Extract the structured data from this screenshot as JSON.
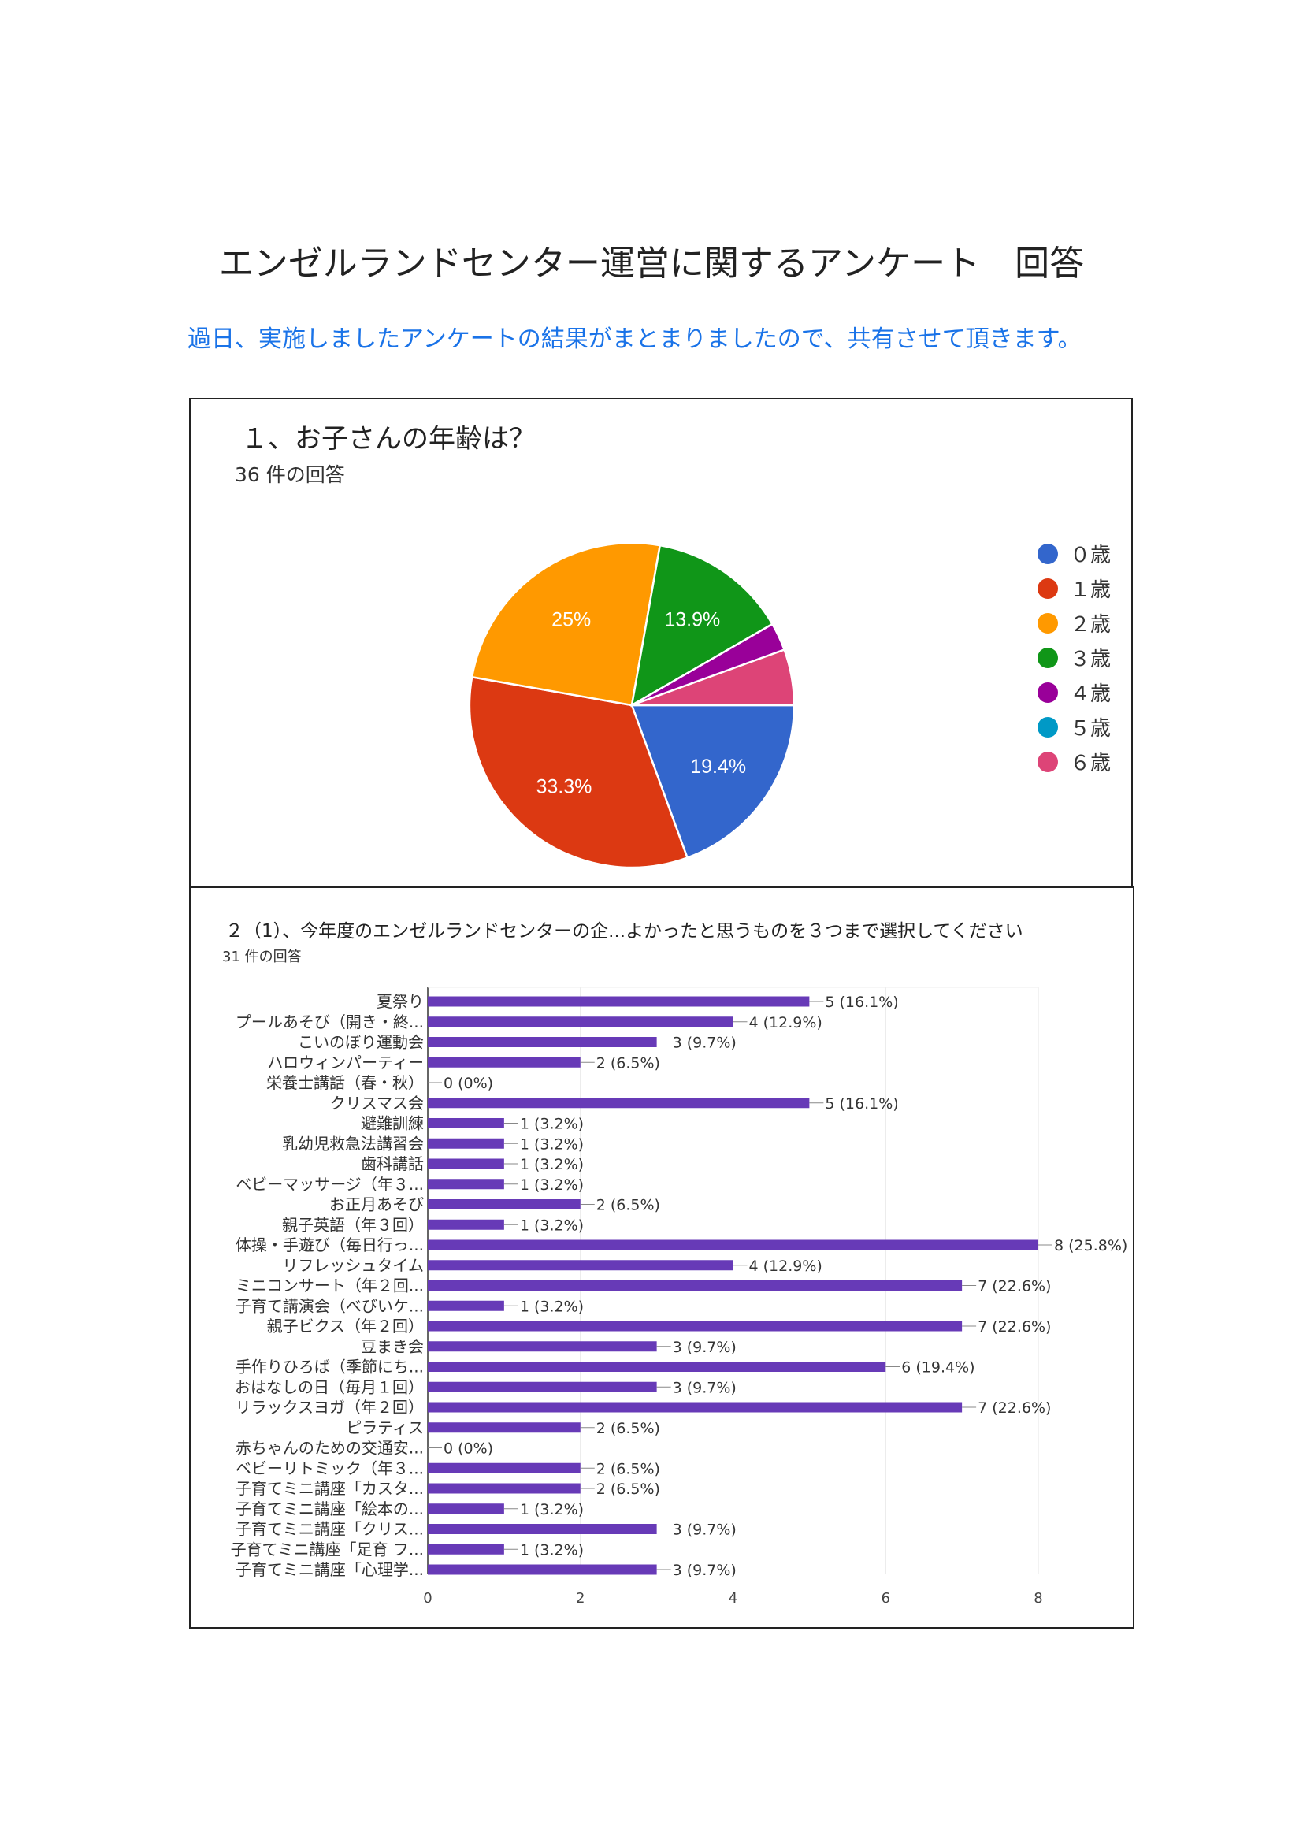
{
  "title": "エンゼルランドセンター運営に関するアンケート　回答",
  "subtitle": "過日、実施しましたアンケートの結果がまとまりましたので、共有させて頂きます。",
  "chart_data": [
    {
      "type": "pie",
      "question": "１、お子さんの年齢は？",
      "responses": "36 件の回答",
      "legend_position": "right",
      "categories": [
        "０歳",
        "１歳",
        "２歳",
        "３歳",
        "４歳",
        "５歳",
        "６歳"
      ],
      "values": [
        7,
        12,
        9,
        5,
        1,
        0,
        2
      ],
      "labels": [
        "19.4%",
        "33.3%",
        "25%",
        "13.9%",
        "",
        "",
        ""
      ],
      "colors": [
        "#3366cc",
        "#dc3912",
        "#ff9900",
        "#109618",
        "#990099",
        "#0099c6",
        "#dd4477"
      ]
    },
    {
      "type": "bar",
      "orientation": "horizontal",
      "question": "２（1）、今年度のエンゼルランドセンターの企...よかったと思うものを３つまで選択してください",
      "responses": "31 件の回答",
      "xlim": [
        0,
        8
      ],
      "xticks": [
        "0",
        "2",
        "4",
        "6",
        "8"
      ],
      "grid": true,
      "color": "#673ab7",
      "categories": [
        "夏祭り",
        "プールあそび（開き・終...",
        "こいのぼり運動会",
        "ハロウィンパーティー",
        "栄養士講話（春・秋）",
        "クリスマス会",
        "避難訓練",
        "乳幼児救急法講習会",
        "歯科講話",
        "ベビーマッサージ（年３...",
        "お正月あそび",
        "親子英語（年３回）",
        "体操・手遊び（毎日行っ...",
        "リフレッシュタイム",
        "ミニコンサート（年２回...",
        "子育て講演会（べびいケ...",
        "親子ビクス（年２回）",
        "豆まき会",
        "手作りひろば（季節にち...",
        "おはなしの日（毎月１回）",
        "リラックスヨガ（年２回）",
        "ピラティス",
        "赤ちゃんのための交通安...",
        "ベビーリトミック（年３...",
        "子育てミニ講座「カスタ...",
        "子育てミニ講座「絵本の...",
        "子育てミニ講座「クリス...",
        "子育てミニ講座「足育 フ...",
        "子育てミニ講座「心理学..."
      ],
      "values": [
        5,
        4,
        3,
        2,
        0,
        5,
        1,
        1,
        1,
        1,
        2,
        1,
        8,
        4,
        7,
        1,
        7,
        3,
        6,
        3,
        7,
        2,
        0,
        2,
        2,
        1,
        3,
        1,
        3
      ],
      "labels": [
        "5 (16.1%)",
        "4 (12.9%)",
        "3 (9.7%)",
        "2 (6.5%)",
        "0 (0%)",
        "5 (16.1%)",
        "1 (3.2%)",
        "1 (3.2%)",
        "1 (3.2%)",
        "1 (3.2%)",
        "2 (6.5%)",
        "1 (3.2%)",
        "8 (25.8%)",
        "4 (12.9%)",
        "7 (22.6%)",
        "1 (3.2%)",
        "7 (22.6%)",
        "3 (9.7%)",
        "6 (19.4%)",
        "3 (9.7%)",
        "7 (22.6%)",
        "2 (6.5%)",
        "0 (0%)",
        "2 (6.5%)",
        "2 (6.5%)",
        "1 (3.2%)",
        "3 (9.7%)",
        "1 (3.2%)",
        "3 (9.7%)"
      ]
    }
  ]
}
